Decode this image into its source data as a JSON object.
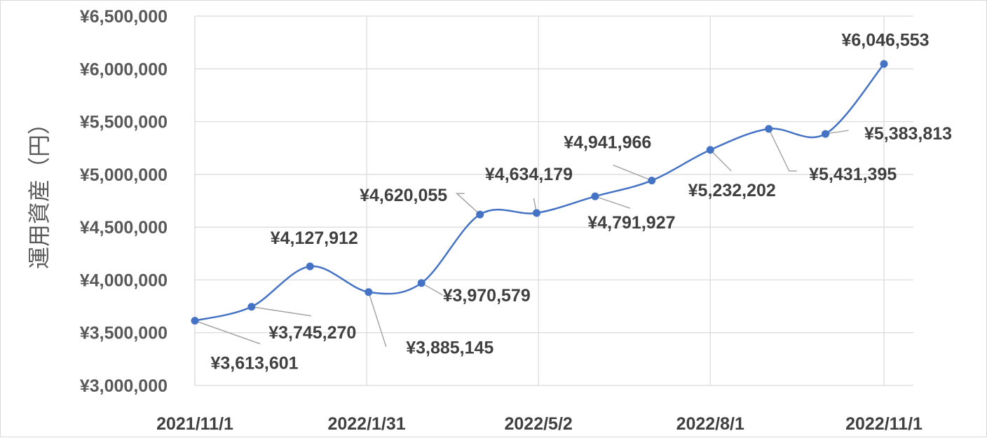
{
  "chart_data": {
    "type": "line",
    "title": "",
    "xlabel": "",
    "ylabel": "運用資産（円）",
    "ylim": [
      3000000,
      6500000
    ],
    "y_ticks": [
      3000000,
      3500000,
      4000000,
      4500000,
      5000000,
      5500000,
      6000000,
      6500000
    ],
    "y_tick_labels": [
      "¥3,000,000",
      "¥3,500,000",
      "¥4,000,000",
      "¥4,500,000",
      "¥5,000,000",
      "¥5,500,000",
      "¥6,000,000",
      "¥6,500,000"
    ],
    "x_tick_labels": [
      "2021/11/1",
      "2022/1/31",
      "2022/5/2",
      "2022/8/1",
      "2022/11/1"
    ],
    "x_tick_dates": [
      "2021-11-01",
      "2022-01-31",
      "2022-05-02",
      "2022-08-01",
      "2022-11-01"
    ],
    "grid": true,
    "line_color": "#4472c4",
    "series": [
      {
        "x": [
          "2021-11-01",
          "2021-12-01",
          "2022-01-01",
          "2022-02-01",
          "2022-03-01",
          "2022-04-01",
          "2022-05-01",
          "2022-06-01",
          "2022-07-01",
          "2022-08-01",
          "2022-09-01",
          "2022-10-01",
          "2022-11-01"
        ],
        "values": [
          3613601,
          3745270,
          4127912,
          3885145,
          3970579,
          4620055,
          4634179,
          4791927,
          4941966,
          5232202,
          5431395,
          5383813,
          6046553
        ],
        "labels": [
          "¥3,613,601",
          "¥3,745,270",
          "¥4,127,912",
          "¥3,885,145",
          "¥3,970,579",
          "¥4,620,055",
          "¥4,634,179",
          "¥4,791,927",
          "¥4,941,966",
          "¥5,232,202",
          "¥5,431,395",
          "¥5,383,813",
          "¥6,046,553"
        ]
      }
    ]
  }
}
